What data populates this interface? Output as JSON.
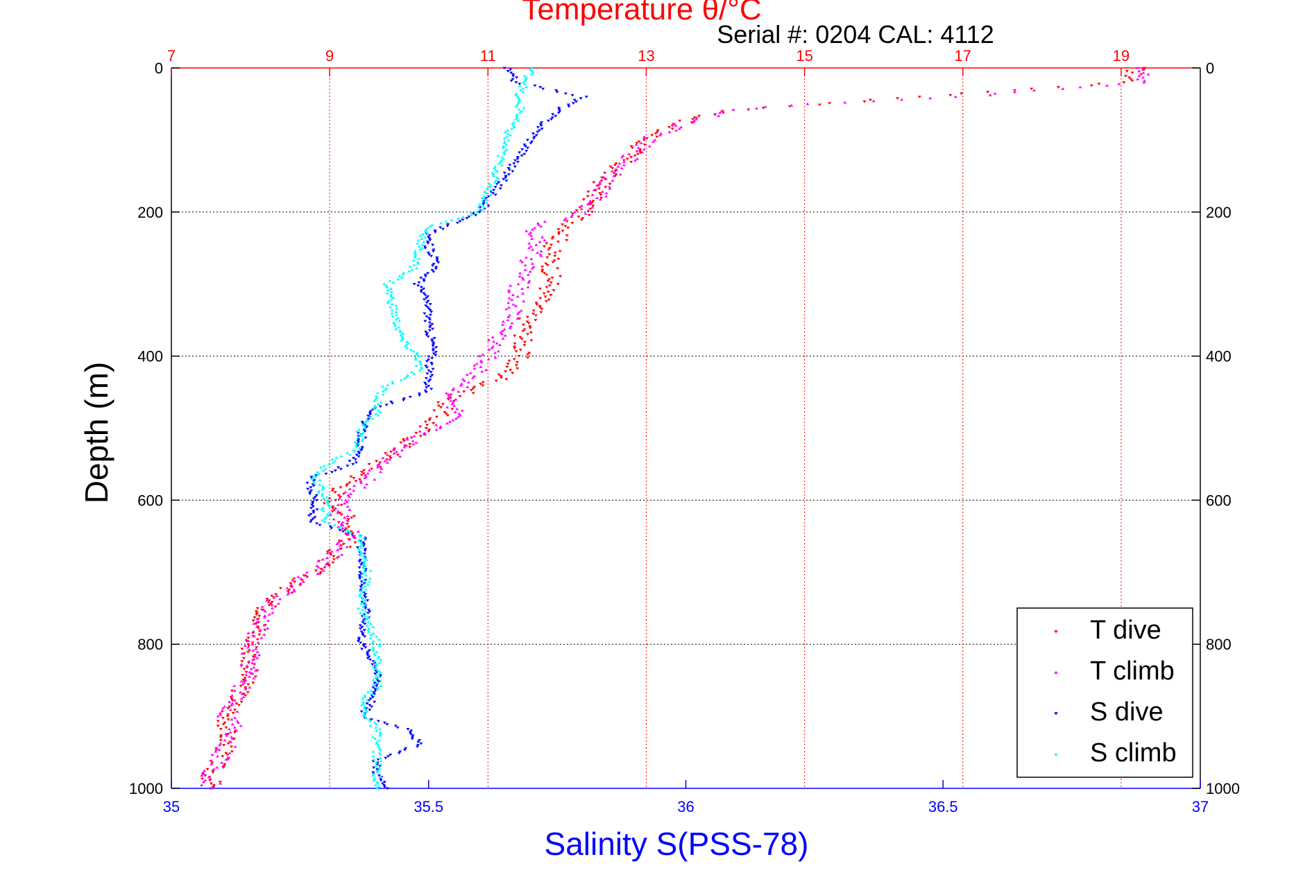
{
  "chart_data": {
    "type": "scatter",
    "title": "Temperature θ/°C",
    "subtitle": "Serial #: 0204  CAL: 4112",
    "ylabel": "Depth (m)",
    "xlabel_bottom": "Salinity S(PSS-78)",
    "ylim": [
      0,
      1000
    ],
    "y_reversed": true,
    "y_ticks": [
      "0",
      "200",
      "400",
      "600",
      "800",
      "1000"
    ],
    "x_bottom": {
      "lim": [
        35,
        37
      ],
      "ticks": [
        "35",
        "35.5",
        "36",
        "36.5",
        "37"
      ]
    },
    "x_top": {
      "lim": [
        7,
        20
      ],
      "ticks": [
        "7",
        "9",
        "11",
        "13",
        "15",
        "17",
        "19"
      ]
    },
    "grid": true,
    "legend_position": "bottom-right",
    "colors": {
      "temperature": "#ff0000",
      "salinity": "#0000ff",
      "axis": "#000000"
    },
    "series": [
      {
        "name": "T dive",
        "axis": "top",
        "color": "#ff0000",
        "marker": "triangle-down",
        "depth": [
          0,
          20,
          40,
          60,
          80,
          100,
          150,
          200,
          250,
          300,
          350,
          400,
          430,
          460,
          480,
          500,
          520,
          550,
          580,
          600,
          620,
          650,
          680,
          700,
          720,
          750,
          780,
          800,
          830,
          860,
          880,
          900,
          920,
          940,
          960,
          980,
          1000
        ],
        "values": [
          19.2,
          19.1,
          16.5,
          14.0,
          13.3,
          13.0,
          12.5,
          12.2,
          11.8,
          11.8,
          11.5,
          11.4,
          11.2,
          10.5,
          10.4,
          10.2,
          10.0,
          9.6,
          9.2,
          9.0,
          9.2,
          9.3,
          9.0,
          8.8,
          8.5,
          8.2,
          8.1,
          8.0,
          8.0,
          7.9,
          7.8,
          7.7,
          7.7,
          7.7,
          7.6,
          7.5,
          7.5
        ]
      },
      {
        "name": "T climb",
        "axis": "top",
        "color": "#ff00ff",
        "marker": "triangle-up",
        "depth": [
          0,
          20,
          40,
          50,
          60,
          80,
          100,
          150,
          200,
          220,
          250,
          300,
          350,
          380,
          400,
          430,
          460,
          480,
          500,
          520,
          550,
          580,
          600,
          620,
          650,
          680,
          700,
          720,
          750,
          780,
          800,
          830,
          860,
          880,
          900,
          920,
          940,
          960,
          980,
          1000
        ],
        "values": [
          19.3,
          19.2,
          17.0,
          15.0,
          14.0,
          13.4,
          13.0,
          12.6,
          12.2,
          11.6,
          11.6,
          11.4,
          11.3,
          11.1,
          11.0,
          10.8,
          10.5,
          10.6,
          10.3,
          10.0,
          9.7,
          9.4,
          9.2,
          9.1,
          9.3,
          9.0,
          8.8,
          8.5,
          8.2,
          8.1,
          8.0,
          8.0,
          7.9,
          7.8,
          7.7,
          7.8,
          7.7,
          7.6,
          7.5,
          7.5
        ]
      },
      {
        "name": "S dive",
        "axis": "bottom",
        "color": "#0000ff",
        "marker": "triangle-down",
        "depth": [
          0,
          20,
          40,
          60,
          80,
          100,
          150,
          200,
          230,
          250,
          270,
          300,
          330,
          360,
          390,
          420,
          450,
          470,
          500,
          520,
          550,
          570,
          580,
          600,
          630,
          650,
          670,
          700,
          750,
          800,
          830,
          860,
          880,
          900,
          920,
          940,
          960,
          980,
          1000
        ],
        "values": [
          35.65,
          35.67,
          35.8,
          35.75,
          35.72,
          35.7,
          35.65,
          35.6,
          35.5,
          35.5,
          35.52,
          35.48,
          35.5,
          35.5,
          35.51,
          35.5,
          35.5,
          35.4,
          35.37,
          35.37,
          35.35,
          35.27,
          35.27,
          35.28,
          35.27,
          35.37,
          35.37,
          35.37,
          35.38,
          35.37,
          35.4,
          35.4,
          35.39,
          35.37,
          35.47,
          35.48,
          35.4,
          35.4,
          35.42
        ]
      },
      {
        "name": "S climb",
        "axis": "bottom",
        "color": "#00ffff",
        "marker": "triangle-up",
        "depth": [
          0,
          20,
          40,
          60,
          80,
          100,
          150,
          200,
          220,
          250,
          280,
          300,
          330,
          360,
          380,
          400,
          420,
          440,
          460,
          480,
          500,
          530,
          550,
          570,
          600,
          630,
          650,
          670,
          700,
          750,
          800,
          830,
          860,
          880,
          900,
          920,
          940,
          960,
          980,
          1000
        ],
        "values": [
          35.7,
          35.69,
          35.67,
          35.68,
          35.66,
          35.65,
          35.63,
          35.6,
          35.5,
          35.48,
          35.47,
          35.42,
          35.43,
          35.44,
          35.45,
          35.48,
          35.48,
          35.42,
          35.4,
          35.4,
          35.37,
          35.36,
          35.3,
          35.28,
          35.3,
          35.3,
          35.37,
          35.37,
          35.38,
          35.37,
          35.4,
          35.4,
          35.4,
          35.37,
          35.38,
          35.4,
          35.4,
          35.4,
          35.4,
          35.4
        ]
      }
    ]
  }
}
